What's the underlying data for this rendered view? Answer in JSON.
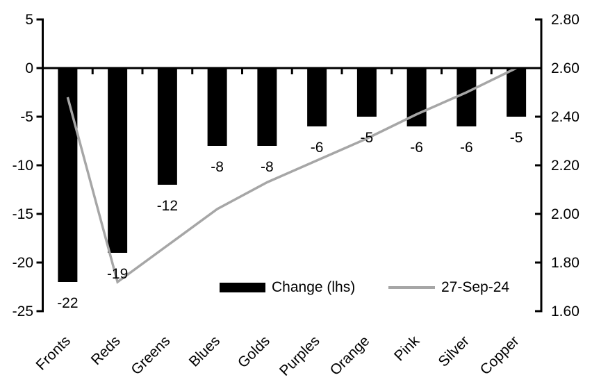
{
  "colors": {
    "bar": "#000000",
    "line": "#a6a6a6",
    "axis": "#000000",
    "text": "#000000",
    "background": "#ffffff"
  },
  "legend": {
    "bar_label": "Change (lhs)",
    "line_label": "27-Sep-24"
  },
  "chart_data": {
    "type": "bar",
    "subtype": "combo-bar-line-dual-axis",
    "title": "",
    "xlabel": "",
    "ylabel_left": "",
    "ylabel_right": "",
    "grid": false,
    "legend_position": "inside-bottom-center",
    "categories": [
      "Fronts",
      "Reds",
      "Greens",
      "Blues",
      "Golds",
      "Purples",
      "Orange",
      "Pink",
      "Silver",
      "Copper"
    ],
    "series": [
      {
        "name": "Change (lhs)",
        "type": "bar",
        "axis": "left",
        "color": "#000000",
        "values": [
          -22,
          -19,
          -12,
          -8,
          -8,
          -6,
          -5,
          -6,
          -6,
          -5
        ],
        "data_labels": [
          "-22",
          "-19",
          "-12",
          "-8",
          "-8",
          "-6",
          "-5",
          "-6",
          "-6",
          "-5"
        ]
      },
      {
        "name": "27-Sep-24",
        "type": "line",
        "axis": "right",
        "color": "#a6a6a6",
        "values": [
          2.48,
          1.72,
          1.87,
          2.02,
          2.13,
          2.22,
          2.31,
          2.41,
          2.5,
          2.6
        ]
      }
    ],
    "left_axis": {
      "min": -25,
      "max": 5,
      "tick_step": 5,
      "ticks": [
        5,
        0,
        -5,
        -10,
        -15,
        -20,
        -25
      ],
      "tick_labels": [
        "5",
        "0",
        "-5",
        "-10",
        "-15",
        "-20",
        "-25"
      ]
    },
    "right_axis": {
      "min": 1.6,
      "max": 2.8,
      "tick_step": 0.2,
      "ticks": [
        2.8,
        2.6,
        2.4,
        2.2,
        2.0,
        1.8,
        1.6
      ],
      "tick_labels": [
        "2.80",
        "2.60",
        "2.40",
        "2.20",
        "2.00",
        "1.80",
        "1.60"
      ]
    }
  }
}
